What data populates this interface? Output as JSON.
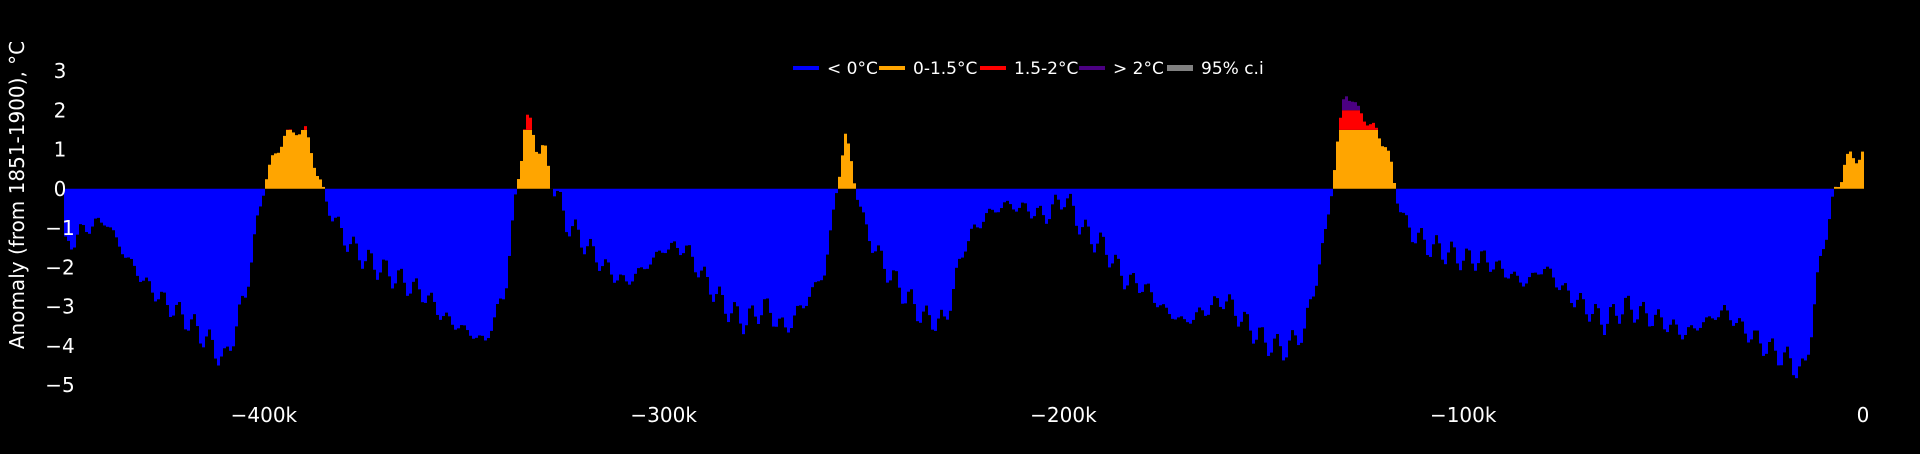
{
  "chart_data": {
    "type": "area",
    "title": "",
    "xlabel": "",
    "ylabel": "Anomaly (from 1851-1900), °C",
    "xlim": [
      -450000,
      0
    ],
    "ylim": [
      -5,
      3
    ],
    "x_ticks": [
      {
        "value": -400000,
        "label": "−400k"
      },
      {
        "value": -300000,
        "label": "−300k"
      },
      {
        "value": -200000,
        "label": "−200k"
      },
      {
        "value": -100000,
        "label": "−100k"
      },
      {
        "value": 0,
        "label": "0"
      }
    ],
    "y_ticks": [
      {
        "value": 3,
        "label": "3"
      },
      {
        "value": 2,
        "label": "2"
      },
      {
        "value": 1,
        "label": "1"
      },
      {
        "value": 0,
        "label": "0"
      },
      {
        "value": -1,
        "label": "−1"
      },
      {
        "value": -2,
        "label": "−2"
      },
      {
        "value": -3,
        "label": "−3"
      },
      {
        "value": -4,
        "label": "−4"
      },
      {
        "value": -5,
        "label": "−5"
      }
    ],
    "grid": false,
    "legend_position": "top-center",
    "legend": [
      {
        "label": "< 0°C",
        "color": "#0000ff"
      },
      {
        "label": "0-1.5°C",
        "color": "#ffa500"
      },
      {
        "label": "1.5-2°C",
        "color": "#ff0000"
      },
      {
        "label": "> 2°C",
        "color": "#4b0082"
      },
      {
        "label": "95% c.i",
        "color": "#808080"
      }
    ],
    "thresholds": [
      0,
      1.5,
      2
    ],
    "band_colors": [
      "#0000ff",
      "#ffa500",
      "#ff0000",
      "#4b0082"
    ],
    "series": [
      {
        "x": [
          -450000,
          -445000,
          -440000,
          -435000,
          -430000,
          -425000,
          -420000,
          -415000,
          -410000,
          -405000,
          -400000,
          -395000,
          -390000,
          -385000,
          -380000,
          -375000,
          -370000,
          -365000,
          -360000,
          -355000,
          -350000,
          -345000,
          -340000,
          -335000,
          -330000,
          -325000,
          -320000,
          -315000,
          -310000,
          -305000,
          -300000,
          -295000,
          -290000,
          -285000,
          -280000,
          -275000,
          -270000,
          -265000,
          -260000,
          -255000,
          -250000,
          -245000,
          -240000,
          -235000,
          -230000,
          -225000,
          -220000,
          -215000,
          -210000,
          -205000,
          -200000,
          -195000,
          -190000,
          -185000,
          -180000,
          -175000,
          -170000,
          -165000,
          -160000,
          -155000,
          -150000,
          -145000,
          -140000,
          -135000,
          -130000,
          -125000,
          -120000,
          -115000,
          -110000,
          -105000,
          -100000,
          -95000,
          -90000,
          -85000,
          -80000,
          -75000,
          -70000,
          -65000,
          -60000,
          -55000,
          -50000,
          -45000,
          -40000,
          -35000,
          -30000,
          -25000,
          -20000,
          -15000,
          -10000,
          -5000,
          0
        ],
        "y": [
          -1.5,
          -1.0,
          -0.8,
          -1.7,
          -2.4,
          -2.9,
          -3.3,
          -3.8,
          -4.4,
          -2.7,
          0.3,
          1.4,
          1.5,
          -0.3,
          -1.3,
          -1.8,
          -2.1,
          -2.4,
          -2.7,
          -3.3,
          -3.6,
          -3.9,
          -2.6,
          1.8,
          0.8,
          -0.8,
          -1.4,
          -2.0,
          -2.4,
          -2.0,
          -1.5,
          -1.5,
          -2.3,
          -3.0,
          -3.4,
          -3.0,
          -3.6,
          -2.9,
          -2.1,
          1.4,
          -1.0,
          -2.0,
          -2.7,
          -3.3,
          -3.4,
          -1.4,
          -0.7,
          -0.4,
          -0.5,
          -0.7,
          -0.2,
          -1.1,
          -1.5,
          -2.3,
          -2.5,
          -3.1,
          -3.4,
          -3.1,
          -2.8,
          -3.4,
          -3.9,
          -4.1,
          -3.6,
          -1.3,
          2.5,
          1.8,
          1.2,
          -0.9,
          -1.4,
          -1.6,
          -1.8,
          -1.8,
          -2.1,
          -2.4,
          -2.0,
          -2.6,
          -3.0,
          -3.4,
          -3.0,
          -3.2,
          -3.4,
          -3.7,
          -3.4,
          -3.1,
          -3.6,
          -4.0,
          -4.3,
          -4.7,
          -1.2,
          0.7,
          0.9
        ]
      }
    ]
  }
}
